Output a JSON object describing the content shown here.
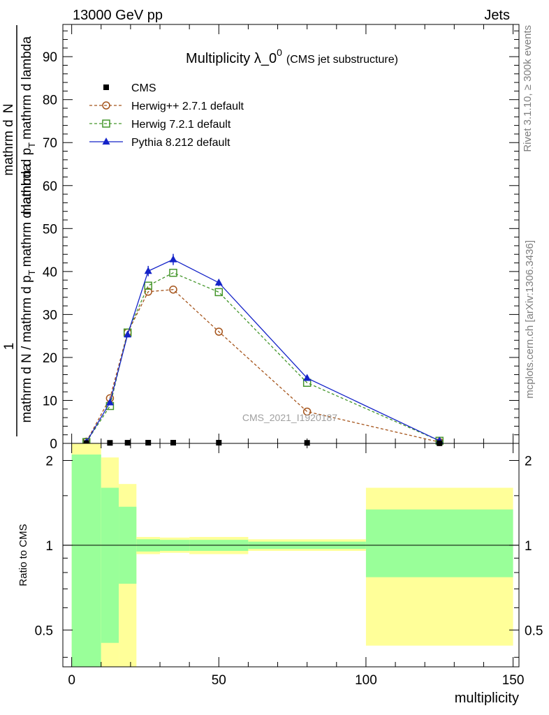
{
  "header": {
    "left_text": "13000 GeV pp",
    "right_text": "Jets",
    "side_top": "Rivet 3.1.10, ≥ 300k events",
    "side_bottom": "mcplots.cern.ch [arXiv:1306.3436]",
    "watermark": "CMS_2021_I1920187"
  },
  "chart_data": [
    {
      "type": "line",
      "title": "Multiplicity λ_0",
      "title_sup": "0",
      "subtitle": "(CMS jet substructure)",
      "ylabel_numerator": "1",
      "ylabel_denominator": "mathrm d N / mathrm d p",
      "ylabel_denominator_sub": "T",
      "ylabel_denominator_rest": "mathrm d lambda",
      "ylabel_fraction_num": "mathrm d",
      "ylabel_fraction_num_sup": "2",
      "ylabel_fraction_num_rest": "N",
      "ylabel_fraction_den": "mathrm d p",
      "ylabel_fraction_den_sub": "T",
      "ylabel_fraction_den_rest": "mathrm d lambda",
      "xlim": [
        -3,
        152
      ],
      "ylim": [
        0,
        97.5
      ],
      "yticks": [
        0,
        10,
        20,
        30,
        40,
        50,
        60,
        70,
        80,
        90
      ],
      "ytick_labels": [
        "0",
        "10",
        "20",
        "30",
        "40",
        "50",
        "60",
        "70",
        "80",
        "90"
      ],
      "legend_position": "top-left",
      "series": [
        {
          "name": "CMS",
          "color": "#000000",
          "marker": "square-filled",
          "line": "none",
          "x": [
            5,
            13,
            19,
            26,
            34.5,
            50,
            80,
            125
          ],
          "y": [
            0.08,
            0.12,
            0.15,
            0.16,
            0.16,
            0.16,
            0.12,
            0.04
          ]
        },
        {
          "name": "Herwig++ 2.7.1 default",
          "color": "#a5541b",
          "marker": "circle-open",
          "line": "dashed",
          "x": [
            5,
            13,
            19,
            26,
            34.5,
            50,
            80,
            125
          ],
          "y": [
            0.4,
            10.5,
            25.8,
            35.3,
            35.8,
            26.0,
            7.4,
            0.3
          ]
        },
        {
          "name": "Herwig 7.2.1 default",
          "color": "#44962b",
          "marker": "square-open",
          "line": "dashed",
          "x": [
            5,
            13,
            19,
            26,
            34.5,
            50,
            80,
            125
          ],
          "y": [
            0.3,
            8.7,
            25.8,
            36.7,
            39.7,
            35.2,
            14.1,
            0.6
          ]
        },
        {
          "name": "Pythia 8.212 default",
          "color": "#1423c8",
          "marker": "triangle-filled",
          "line": "solid",
          "x": [
            5,
            13,
            19,
            26,
            34.5,
            50,
            80,
            125
          ],
          "y": [
            0.3,
            9.5,
            25.3,
            40.1,
            42.8,
            37.4,
            15.2,
            0.6
          ],
          "yerr": [
            0.05,
            0.4,
            0.6,
            1.2,
            1.3,
            0.8,
            0.4,
            0.05
          ]
        }
      ]
    },
    {
      "type": "area",
      "ylabel": "Ratio to CMS",
      "xlabel": "multiplicity",
      "yscale": "log",
      "ylim": [
        0.37,
        2.3
      ],
      "yticks": [
        0.5,
        1,
        2
      ],
      "ytick_labels": [
        "0.5",
        "1",
        "2"
      ],
      "xticks": [
        0,
        50,
        100,
        150
      ],
      "xtick_labels": [
        "0",
        "50",
        "100",
        "150"
      ],
      "reference_line": 1,
      "band_colors": {
        "outer": "#ffff99",
        "inner": "#99ff99"
      },
      "bins": [
        {
          "x0": 0,
          "x1": 10,
          "outer": [
            0.3,
            2.6
          ],
          "inner": [
            0.3,
            2.1
          ]
        },
        {
          "x0": 10,
          "x1": 16,
          "outer": [
            0.3,
            2.05
          ],
          "inner": [
            0.45,
            1.6
          ]
        },
        {
          "x0": 16,
          "x1": 22,
          "outer": [
            0.3,
            1.65
          ],
          "inner": [
            0.73,
            1.37
          ]
        },
        {
          "x0": 22,
          "x1": 30,
          "outer": [
            0.93,
            1.07
          ],
          "inner": [
            0.95,
            1.05
          ]
        },
        {
          "x0": 30,
          "x1": 40,
          "outer": [
            0.94,
            1.065
          ],
          "inner": [
            0.955,
            1.045
          ]
        },
        {
          "x0": 40,
          "x1": 60,
          "outer": [
            0.93,
            1.07
          ],
          "inner": [
            0.955,
            1.045
          ]
        },
        {
          "x0": 60,
          "x1": 100,
          "outer": [
            0.955,
            1.05
          ],
          "inner": [
            0.97,
            1.03
          ]
        },
        {
          "x0": 100,
          "x1": 150,
          "outer": [
            0.44,
            1.6
          ],
          "inner": [
            0.77,
            1.34
          ]
        }
      ]
    }
  ]
}
